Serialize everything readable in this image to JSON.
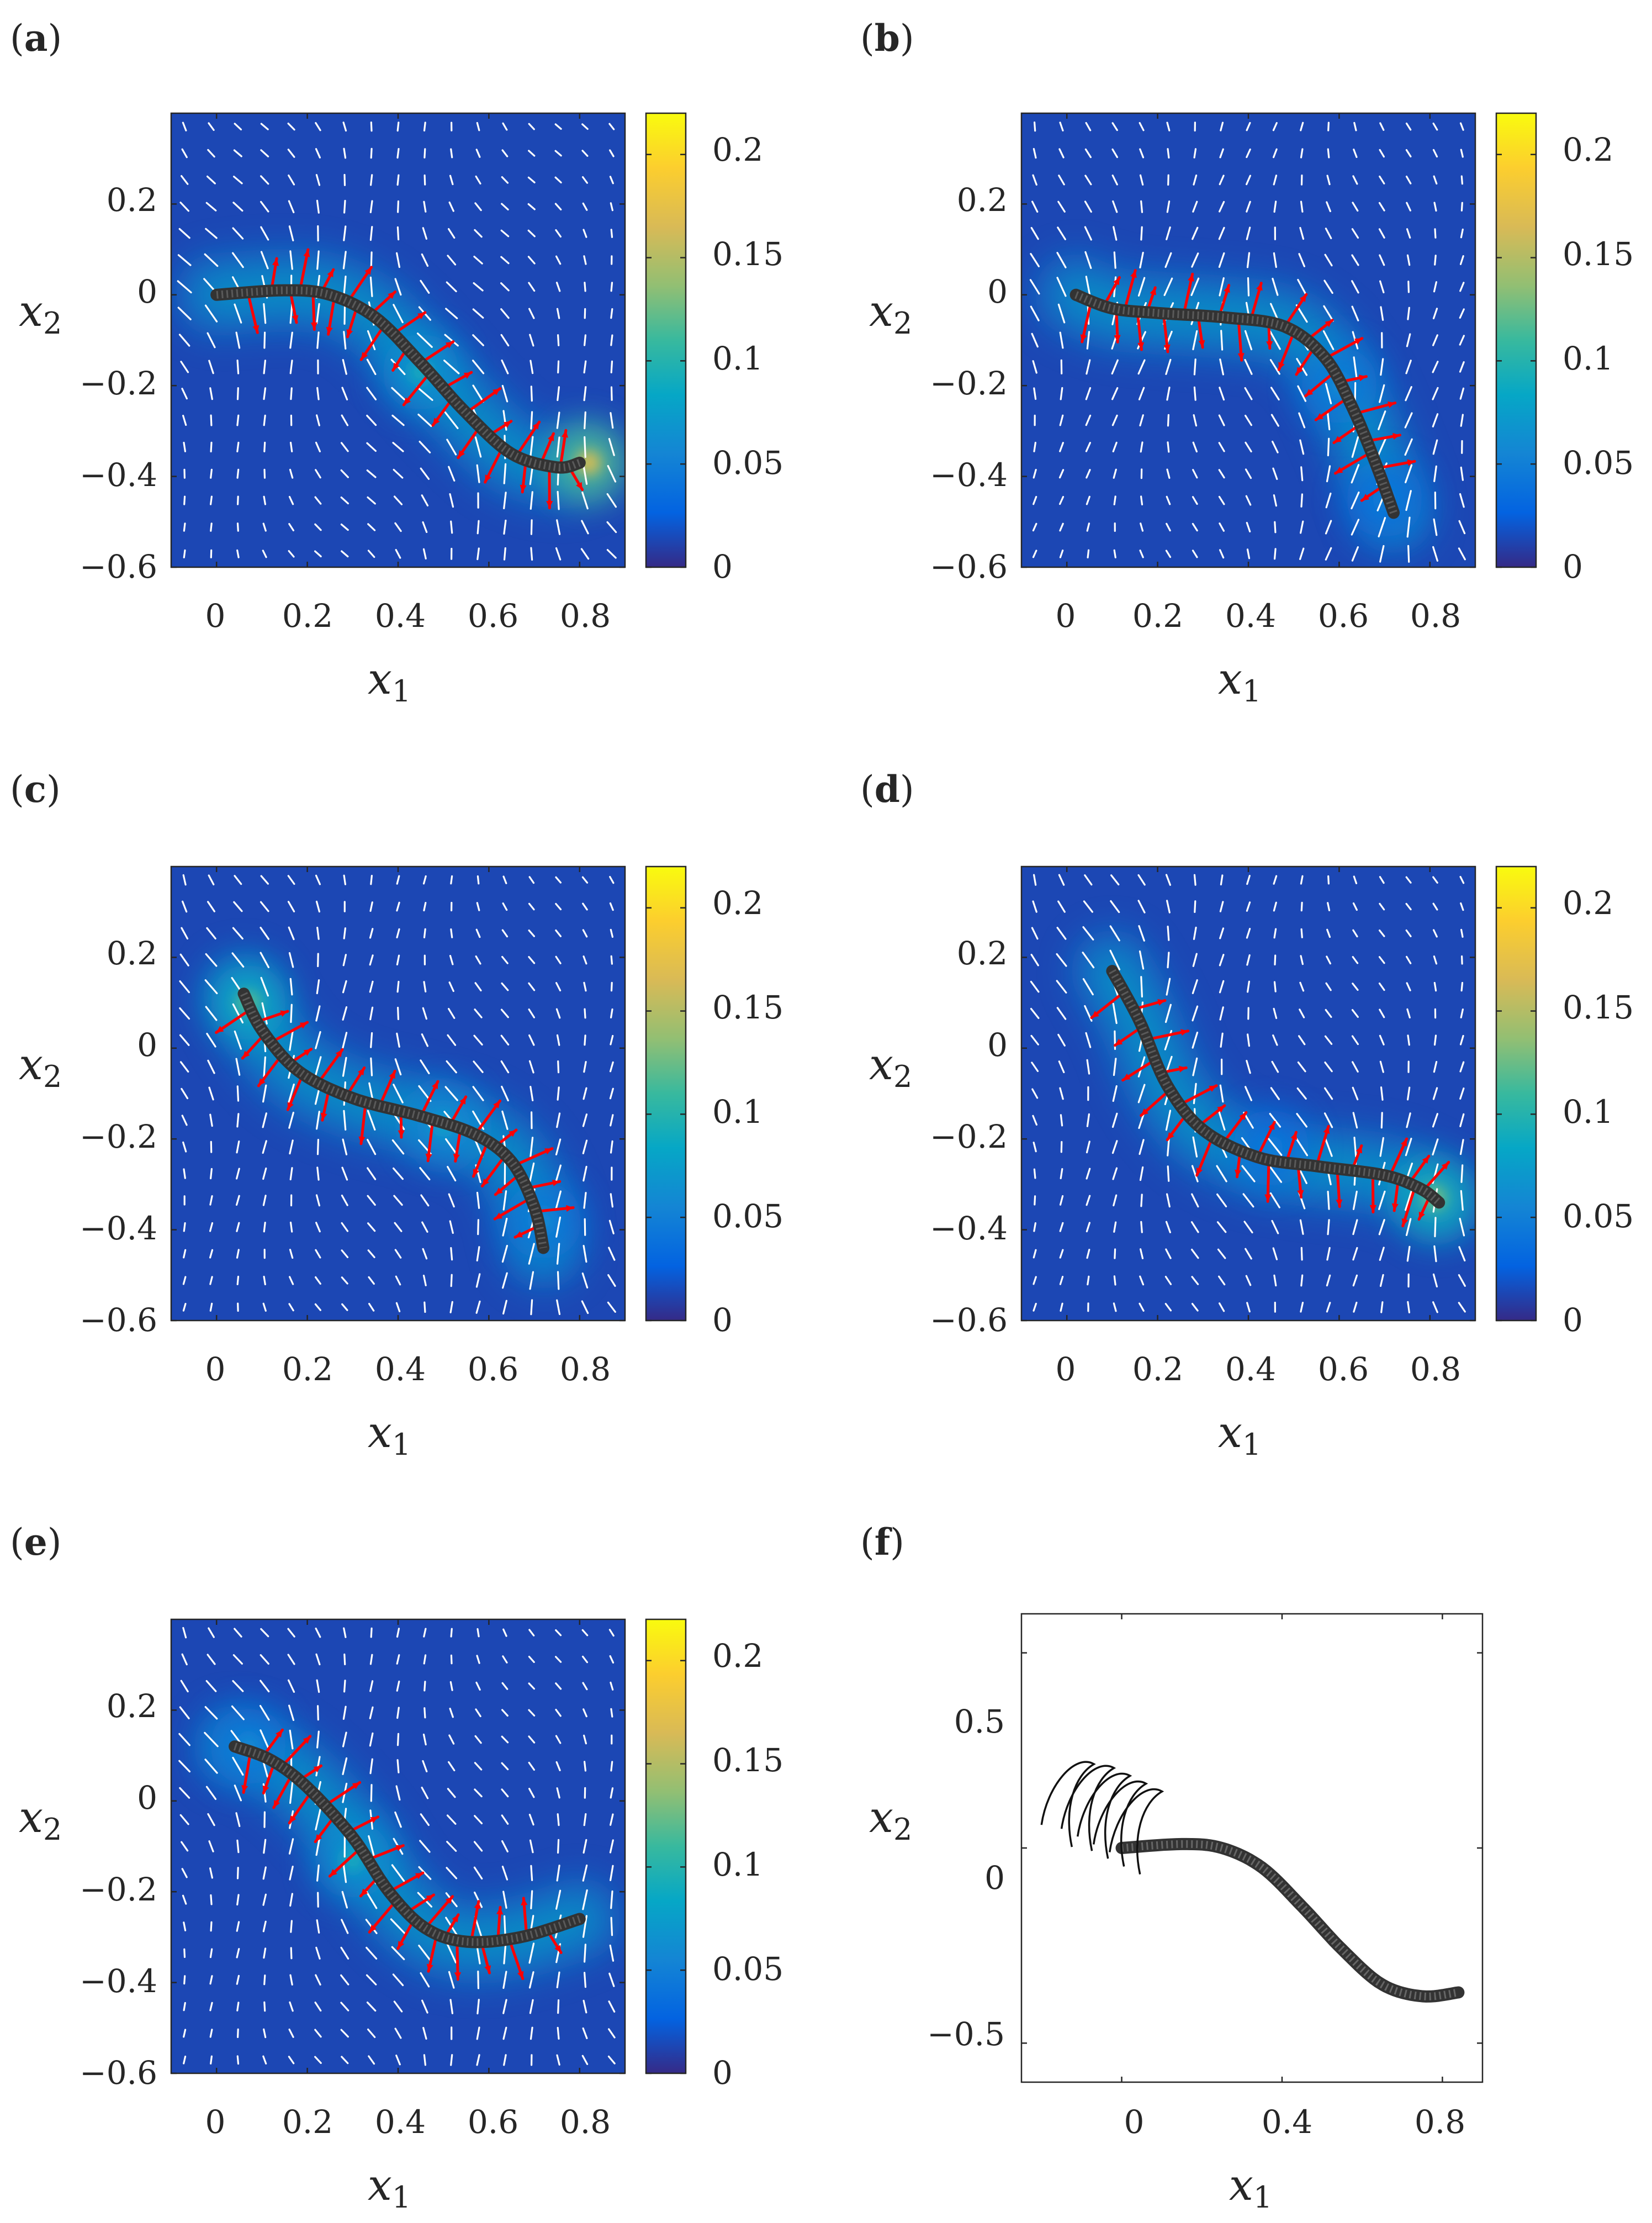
{
  "figure": {
    "background": "#ffffff",
    "colormap": "parula"
  },
  "chart_data": [
    {
      "panel": "a",
      "type": "heatmap",
      "xlabel": "x1",
      "ylabel": "x2",
      "xlim": [
        -0.1,
        0.9
      ],
      "ylim": [
        -0.6,
        0.4
      ],
      "xticks": [
        0,
        0.2,
        0.4,
        0.6,
        0.8
      ],
      "yticks": [
        -0.6,
        -0.4,
        -0.2,
        0,
        0.2
      ],
      "colorbar": {
        "clim": [
          0,
          0.22
        ],
        "ticks": [
          0,
          0.05,
          0.1,
          0.15,
          0.2
        ]
      },
      "body_curve": [
        [
          0,
          0
        ],
        [
          0.15,
          0.01
        ],
        [
          0.25,
          0
        ],
        [
          0.35,
          -0.05
        ],
        [
          0.45,
          -0.15
        ],
        [
          0.55,
          -0.26
        ],
        [
          0.65,
          -0.35
        ],
        [
          0.75,
          -0.38
        ],
        [
          0.8,
          -0.37
        ]
      ],
      "high_value_spots": [
        {
          "x": 0.82,
          "y": -0.37,
          "value": 0.17
        },
        {
          "x": 0.45,
          "y": -0.17,
          "value": 0.09
        }
      ],
      "flow_angle": -1.2,
      "red_arrow_side": 1
    },
    {
      "panel": "b",
      "type": "heatmap",
      "xlabel": "x1",
      "ylabel": "x2",
      "xlim": [
        -0.1,
        0.9
      ],
      "ylim": [
        -0.6,
        0.4
      ],
      "xticks": [
        0,
        0.2,
        0.4,
        0.6,
        0.8
      ],
      "yticks": [
        -0.6,
        -0.4,
        -0.2,
        0,
        0.2
      ],
      "colorbar": {
        "clim": [
          0,
          0.22
        ],
        "ticks": [
          0,
          0.05,
          0.1,
          0.15,
          0.2
        ]
      },
      "body_curve": [
        [
          0.02,
          0
        ],
        [
          0.1,
          -0.03
        ],
        [
          0.2,
          -0.04
        ],
        [
          0.35,
          -0.05
        ],
        [
          0.48,
          -0.07
        ],
        [
          0.57,
          -0.14
        ],
        [
          0.63,
          -0.25
        ],
        [
          0.68,
          -0.37
        ],
        [
          0.72,
          -0.48
        ]
      ],
      "high_value_spots": [
        {
          "x": 0.6,
          "y": -0.2,
          "value": 0.06
        },
        {
          "x": 0.7,
          "y": -0.45,
          "value": 0.05
        }
      ],
      "flow_angle": -1.5,
      "red_arrow_side": 1
    },
    {
      "panel": "c",
      "type": "heatmap",
      "xlabel": "x1",
      "ylabel": "x2",
      "xlim": [
        -0.1,
        0.9
      ],
      "ylim": [
        -0.6,
        0.4
      ],
      "xticks": [
        0,
        0.2,
        0.4,
        0.6,
        0.8
      ],
      "yticks": [
        -0.6,
        -0.4,
        -0.2,
        0,
        0.2
      ],
      "colorbar": {
        "clim": [
          0,
          0.22
        ],
        "ticks": [
          0,
          0.05,
          0.1,
          0.15,
          0.2
        ]
      },
      "body_curve": [
        [
          0.06,
          0.12
        ],
        [
          0.1,
          0.04
        ],
        [
          0.18,
          -0.05
        ],
        [
          0.3,
          -0.11
        ],
        [
          0.45,
          -0.15
        ],
        [
          0.57,
          -0.19
        ],
        [
          0.65,
          -0.25
        ],
        [
          0.7,
          -0.35
        ],
        [
          0.72,
          -0.44
        ]
      ],
      "high_value_spots": [
        {
          "x": 0.07,
          "y": 0.1,
          "value": 0.12
        },
        {
          "x": 0.5,
          "y": -0.17,
          "value": 0.08
        },
        {
          "x": 0.72,
          "y": -0.38,
          "value": 0.06
        }
      ],
      "flow_angle": -1.35,
      "red_arrow_side": 1
    },
    {
      "panel": "d",
      "type": "heatmap",
      "xlabel": "x1",
      "ylabel": "x2",
      "xlim": [
        -0.1,
        0.9
      ],
      "ylim": [
        -0.6,
        0.4
      ],
      "xticks": [
        0,
        0.2,
        0.4,
        0.6,
        0.8
      ],
      "yticks": [
        -0.6,
        -0.4,
        -0.2,
        0,
        0.2
      ],
      "colorbar": {
        "clim": [
          0,
          0.22
        ],
        "ticks": [
          0,
          0.05,
          0.1,
          0.15,
          0.2
        ]
      },
      "body_curve": [
        [
          0.1,
          0.17
        ],
        [
          0.16,
          0.06
        ],
        [
          0.22,
          -0.08
        ],
        [
          0.3,
          -0.18
        ],
        [
          0.42,
          -0.24
        ],
        [
          0.55,
          -0.26
        ],
        [
          0.7,
          -0.28
        ],
        [
          0.78,
          -0.31
        ],
        [
          0.82,
          -0.34
        ]
      ],
      "high_value_spots": [
        {
          "x": 0.81,
          "y": -0.33,
          "value": 0.13
        },
        {
          "x": 0.45,
          "y": -0.22,
          "value": 0.05
        }
      ],
      "flow_angle": -1.4,
      "red_arrow_side": 1
    },
    {
      "panel": "e",
      "type": "heatmap",
      "xlabel": "x1",
      "ylabel": "x2",
      "xlim": [
        -0.1,
        0.9
      ],
      "ylim": [
        -0.6,
        0.4
      ],
      "xticks": [
        0,
        0.2,
        0.4,
        0.6,
        0.8
      ],
      "yticks": [
        -0.6,
        -0.4,
        -0.2,
        0,
        0.2
      ],
      "colorbar": {
        "clim": [
          0,
          0.22
        ],
        "ticks": [
          0,
          0.05,
          0.1,
          0.15,
          0.2
        ]
      },
      "body_curve": [
        [
          0.04,
          0.12
        ],
        [
          0.12,
          0.09
        ],
        [
          0.2,
          0.03
        ],
        [
          0.3,
          -0.08
        ],
        [
          0.38,
          -0.2
        ],
        [
          0.46,
          -0.28
        ],
        [
          0.55,
          -0.31
        ],
        [
          0.67,
          -0.3
        ],
        [
          0.8,
          -0.26
        ]
      ],
      "high_value_spots": [
        {
          "x": 0.3,
          "y": -0.13,
          "value": 0.09
        },
        {
          "x": 0.07,
          "y": 0.12,
          "value": 0.06
        }
      ],
      "flow_angle": -1.3,
      "red_arrow_side": 1
    },
    {
      "panel": "f",
      "type": "line",
      "xlabel": "x1",
      "ylabel": "x2",
      "xlim": [
        -0.25,
        0.9
      ],
      "ylim": [
        -0.6,
        0.6
      ],
      "xticks": [
        0,
        0.4,
        0.8
      ],
      "yticks": [
        -0.5,
        0,
        0.5
      ],
      "body_curve": [
        [
          0,
          0
        ],
        [
          0.15,
          0.01
        ],
        [
          0.25,
          0
        ],
        [
          0.35,
          -0.05
        ],
        [
          0.45,
          -0.15
        ],
        [
          0.55,
          -0.26
        ],
        [
          0.65,
          -0.35
        ],
        [
          0.75,
          -0.38
        ],
        [
          0.84,
          -0.37
        ]
      ],
      "strokes": [
        [
          -0.2,
          0.13
        ],
        [
          -0.15,
          0.12
        ],
        [
          -0.11,
          0.1
        ],
        [
          -0.07,
          0.08
        ],
        [
          -0.03,
          0.06
        ]
      ]
    }
  ],
  "panels": [
    {
      "label": "a",
      "xlabel": "x",
      "xsub": "1",
      "ylabel": "x",
      "ysub": "2",
      "xticks": [
        "0",
        "0.2",
        "0.4",
        "0.6",
        "0.8"
      ],
      "yticks": [
        "−0.6",
        "−0.4",
        "−0.2",
        "0",
        "0.2"
      ],
      "cbticks": [
        "0",
        "0.05",
        "0.1",
        "0.15",
        "0.2"
      ]
    },
    {
      "label": "b",
      "xlabel": "x",
      "xsub": "1",
      "ylabel": "x",
      "ysub": "2",
      "xticks": [
        "0",
        "0.2",
        "0.4",
        "0.6",
        "0.8"
      ],
      "yticks": [
        "−0.6",
        "−0.4",
        "−0.2",
        "0",
        "0.2"
      ],
      "cbticks": [
        "0",
        "0.05",
        "0.1",
        "0.15",
        "0.2"
      ]
    },
    {
      "label": "c",
      "xlabel": "x",
      "xsub": "1",
      "ylabel": "x",
      "ysub": "2",
      "xticks": [
        "0",
        "0.2",
        "0.4",
        "0.6",
        "0.8"
      ],
      "yticks": [
        "−0.6",
        "−0.4",
        "−0.2",
        "0",
        "0.2"
      ],
      "cbticks": [
        "0",
        "0.05",
        "0.1",
        "0.15",
        "0.2"
      ]
    },
    {
      "label": "d",
      "xlabel": "x",
      "xsub": "1",
      "ylabel": "x",
      "ysub": "2",
      "xticks": [
        "0",
        "0.2",
        "0.4",
        "0.6",
        "0.8"
      ],
      "yticks": [
        "−0.6",
        "−0.4",
        "−0.2",
        "0",
        "0.2"
      ],
      "cbticks": [
        "0",
        "0.05",
        "0.1",
        "0.15",
        "0.2"
      ]
    },
    {
      "label": "e",
      "xlabel": "x",
      "xsub": "1",
      "ylabel": "x",
      "ysub": "2",
      "xticks": [
        "0",
        "0.2",
        "0.4",
        "0.6",
        "0.8"
      ],
      "yticks": [
        "−0.6",
        "−0.4",
        "−0.2",
        "0",
        "0.2"
      ],
      "cbticks": [
        "0",
        "0.05",
        "0.1",
        "0.15",
        "0.2"
      ]
    },
    {
      "label": "f",
      "xlabel": "x",
      "xsub": "1",
      "ylabel": "x",
      "ysub": "2",
      "xticks": [
        "0",
        "0.4",
        "0.8"
      ],
      "yticks": [
        "−0.5",
        "0",
        "0.5"
      ]
    }
  ],
  "colors": {
    "field_low": "#3e26a8",
    "arrow_field": "#ffffff",
    "arrow_force": "#ff0000",
    "body": "#333333"
  }
}
